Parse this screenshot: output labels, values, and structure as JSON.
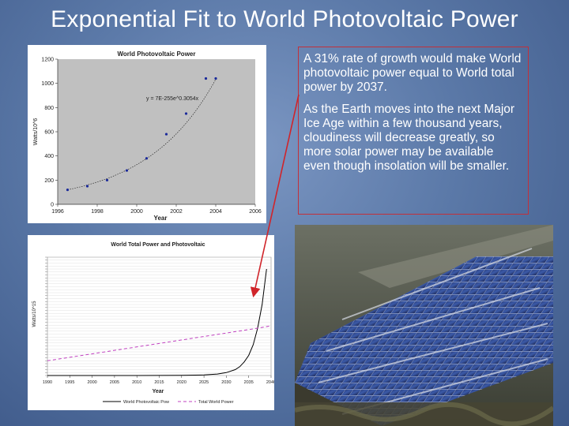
{
  "slide": {
    "title": "Exponential Fit to World Photovoltaic Power",
    "callout": {
      "paragraph1": "A 31% rate of growth would make World photovoltaic power equal to World total power by 2037.",
      "paragraph2": "As the Earth moves into the next Major Ice Age within a few thousand years, cloudiness will decrease greatly, so more solar power may be available even though insolation will be smaller."
    },
    "colors": {
      "arrow": "#d0242a",
      "callout_border": "#c2303a",
      "background": "#5b79a8"
    },
    "photo": {
      "subject": "solar panel array",
      "icon": "solar-panels-photo"
    }
  },
  "chart_data": [
    {
      "type": "scatter",
      "title": "World Photovoltaic Power",
      "xlabel": "Year",
      "ylabel": "Watts/10^6",
      "xlim": [
        1996,
        2006
      ],
      "ylim": [
        0,
        1200
      ],
      "x_ticks": [
        "1996",
        "1998",
        "2000",
        "2002",
        "2004",
        "2006"
      ],
      "y_ticks": [
        "0",
        "200",
        "400",
        "600",
        "800",
        "1000",
        "1200"
      ],
      "fit_equation": "y = 7E-255e^0.3054x",
      "grid": false,
      "series": [
        {
          "x": [
            1996.5,
            1997.5,
            1998.5,
            1999.5,
            2000.5,
            2001.5,
            2002.5,
            2003.5,
            2004.0
          ],
          "y": [
            120,
            150,
            200,
            280,
            380,
            580,
            750,
            1040,
            1040
          ]
        }
      ]
    },
    {
      "type": "line",
      "title": "World Total Power and Photovoltaic",
      "xlabel": "Year",
      "ylabel": "Watts/10^15",
      "xlim": [
        1990,
        2040
      ],
      "x_ticks": [
        "1990",
        "1995",
        "2000",
        "2005",
        "2010",
        "2015",
        "2020",
        "2025",
        "2030",
        "2035",
        "2040"
      ],
      "grid": true,
      "legend": "bottom",
      "series": [
        {
          "name": "World Photovoltaic Pow",
          "x": [
            1990,
            2000,
            2010,
            2020,
            2025,
            2028,
            2030,
            2032,
            2033,
            2034,
            2035,
            2036,
            2037,
            2038,
            2039
          ],
          "y": [
            0.0,
            0.0,
            0.0,
            0.02,
            0.1,
            0.25,
            0.5,
            1.0,
            1.5,
            2.3,
            3.4,
            5.2,
            8.0,
            12.0,
            18.0
          ]
        },
        {
          "name": "Total World Power",
          "x": [
            1990,
            2037,
            2040
          ],
          "y": [
            2.5,
            8.0,
            8.4
          ]
        }
      ]
    }
  ]
}
